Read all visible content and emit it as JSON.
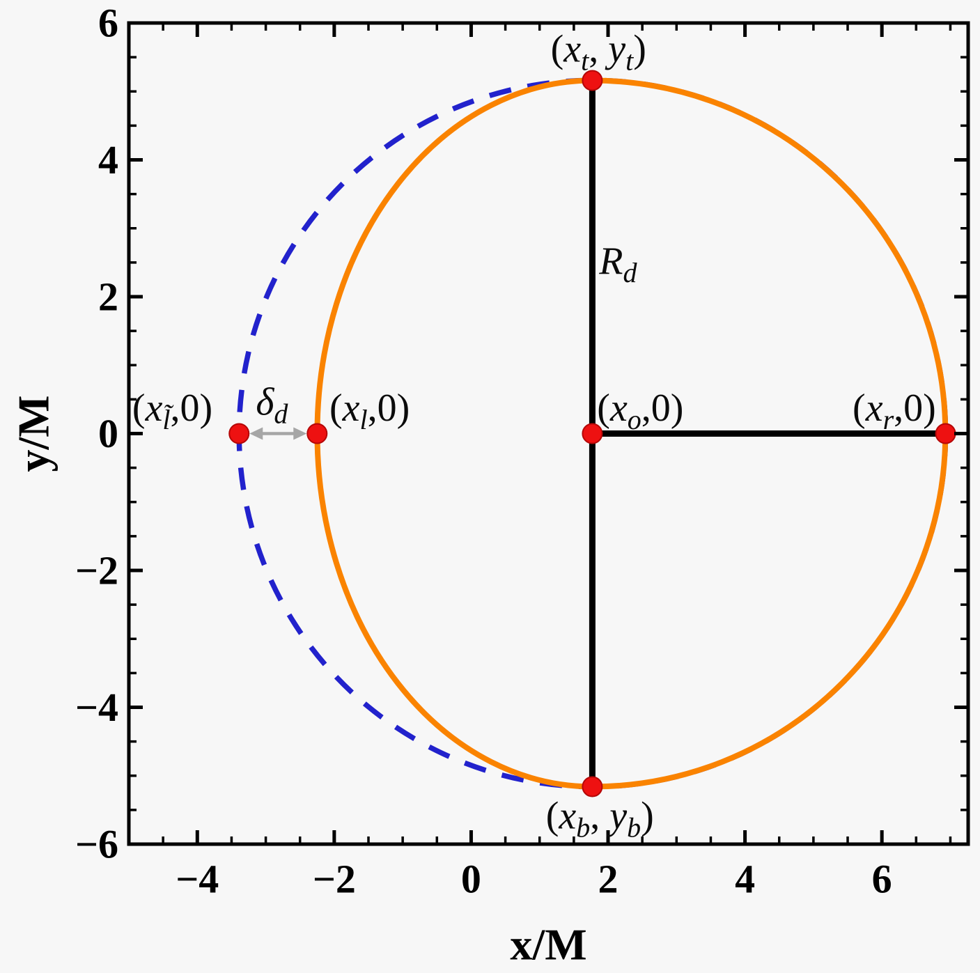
{
  "chart_data": {
    "type": "line",
    "title": "",
    "xlabel": "x/M",
    "ylabel": "y/M",
    "xlim": [
      -5.0,
      7.26
    ],
    "ylim": [
      -6.0,
      6.0
    ],
    "x_major_ticks": [
      -4,
      -2,
      0,
      2,
      4,
      6
    ],
    "y_major_ticks": [
      -6,
      -4,
      -2,
      0,
      2,
      4,
      6
    ],
    "minor_tick_step": 0.5,
    "grid": false,
    "frame": true,
    "legend": "none",
    "colors": {
      "background": "#f7f7f7",
      "frame": "#000000",
      "reference_circle": "#2222cc",
      "shadow_curve": "#fa8300",
      "marker": "#ee1111",
      "arrow": "#a6a6a6",
      "text": "#0b0b0b"
    },
    "series": [
      {
        "name": "reference_circle",
        "shape": "circle",
        "style": "dashed",
        "color": "#2222cc",
        "center": [
          1.77,
          0
        ],
        "radius": 5.16
      },
      {
        "name": "shadow_boundary",
        "shape": "asymmetric_oval",
        "style": "solid",
        "color": "#fa8300",
        "center": [
          1.77,
          0
        ],
        "rx_right": 5.16,
        "rx_left": 4.02,
        "ry": 5.16
      }
    ],
    "points": {
      "color": "#ee1111",
      "radius_px": 14,
      "items": [
        {
          "name": "top-point",
          "x": 1.77,
          "y": 5.16
        },
        {
          "name": "bottom-point",
          "x": 1.77,
          "y": -5.16
        },
        {
          "name": "center-point",
          "x": 1.77,
          "y": 0
        },
        {
          "name": "right-point",
          "x": 6.93,
          "y": 0
        },
        {
          "name": "left-shadow-point",
          "x": -2.25,
          "y": 0
        },
        {
          "name": "left-circle-point",
          "x": -3.39,
          "y": 0
        }
      ]
    },
    "lines": [
      {
        "name": "radius-vertical-line",
        "x1": 1.77,
        "y1": 5.16,
        "x2": 1.77,
        "y2": -5.16,
        "color": "#000000",
        "width": 9
      },
      {
        "name": "radius-horizontal-line",
        "x1": 1.77,
        "y1": 0,
        "x2": 6.93,
        "y2": 0,
        "color": "#000000",
        "width": 9
      }
    ],
    "arrow": {
      "name": "delta-arrow",
      "x1": -3.39,
      "y1": 0,
      "x2": -2.25,
      "y2": 0,
      "color": "#a6a6a6"
    },
    "annotations": [
      {
        "name": "top-point-label",
        "x": 1.86,
        "y": 5.62,
        "anchor": "middle",
        "segs": [
          {
            "t": "(",
            "k": "p"
          },
          {
            "t": "x",
            "k": "i"
          },
          {
            "t": "t",
            "k": "s"
          },
          {
            "t": ", ",
            "k": "p"
          },
          {
            "t": "y",
            "k": "i"
          },
          {
            "t": "t",
            "k": "s"
          },
          {
            "t": ")",
            "k": "p"
          }
        ]
      },
      {
        "name": "bottom-point-label",
        "x": 1.88,
        "y": -5.59,
        "anchor": "middle",
        "segs": [
          {
            "t": "(",
            "k": "p"
          },
          {
            "t": "x",
            "k": "i"
          },
          {
            "t": "b",
            "k": "s"
          },
          {
            "t": ", ",
            "k": "p"
          },
          {
            "t": "y",
            "k": "i"
          },
          {
            "t": "b",
            "k": "s"
          },
          {
            "t": ")",
            "k": "p"
          }
        ]
      },
      {
        "name": "center-point-label",
        "x": 1.84,
        "y": 0.37,
        "anchor": "start",
        "segs": [
          {
            "t": "(",
            "k": "p"
          },
          {
            "t": "x",
            "k": "i"
          },
          {
            "t": "o",
            "k": "s"
          },
          {
            "t": ",",
            "k": "p"
          },
          {
            "t": "0",
            "k": "p"
          },
          {
            "t": ")",
            "k": "p"
          }
        ]
      },
      {
        "name": "right-point-label",
        "x": 6.79,
        "y": 0.37,
        "anchor": "end",
        "segs": [
          {
            "t": "(",
            "k": "p"
          },
          {
            "t": "x",
            "k": "i"
          },
          {
            "t": "r",
            "k": "s"
          },
          {
            "t": ",",
            "k": "p"
          },
          {
            "t": "0",
            "k": "p"
          },
          {
            "t": ")",
            "k": "p"
          }
        ]
      },
      {
        "name": "left-shadow-point-label",
        "x": -2.07,
        "y": 0.37,
        "anchor": "start",
        "segs": [
          {
            "t": "(",
            "k": "p"
          },
          {
            "t": "x",
            "k": "i"
          },
          {
            "t": "l",
            "k": "s"
          },
          {
            "t": ",",
            "k": "p"
          },
          {
            "t": "0",
            "k": "p"
          },
          {
            "t": ")",
            "k": "p"
          }
        ]
      },
      {
        "name": "left-circle-point-label",
        "x": -4.95,
        "y": 0.37,
        "anchor": "start",
        "segs": [
          {
            "t": "(",
            "k": "p"
          },
          {
            "t": "x",
            "k": "i"
          },
          {
            "t": "l̃",
            "k": "s"
          },
          {
            "t": ",",
            "k": "p"
          },
          {
            "t": "0",
            "k": "p"
          },
          {
            "t": ")",
            "k": "p"
          }
        ]
      },
      {
        "name": "delta-d-label",
        "x": -2.91,
        "y": 0.46,
        "anchor": "middle",
        "segs": [
          {
            "t": "δ",
            "k": "i"
          },
          {
            "t": "d",
            "k": "s"
          }
        ]
      },
      {
        "name": "radius-label",
        "x": 1.87,
        "y": 2.52,
        "anchor": "start",
        "segs": [
          {
            "t": "R",
            "k": "i"
          },
          {
            "t": "d",
            "k": "s"
          }
        ]
      }
    ]
  }
}
